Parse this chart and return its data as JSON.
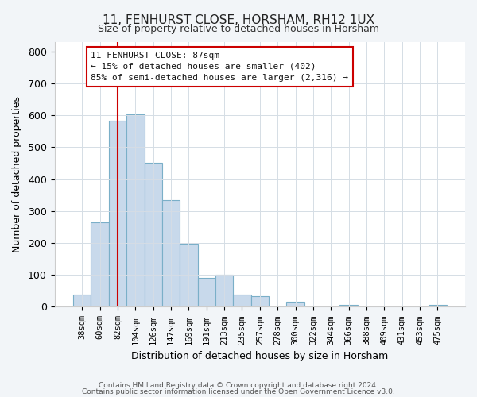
{
  "title": "11, FENHURST CLOSE, HORSHAM, RH12 1UX",
  "subtitle": "Size of property relative to detached houses in Horsham",
  "xlabel": "Distribution of detached houses by size in Horsham",
  "ylabel": "Number of detached properties",
  "bar_labels": [
    "38sqm",
    "60sqm",
    "82sqm",
    "104sqm",
    "126sqm",
    "147sqm",
    "169sqm",
    "191sqm",
    "213sqm",
    "235sqm",
    "257sqm",
    "278sqm",
    "300sqm",
    "322sqm",
    "344sqm",
    "366sqm",
    "388sqm",
    "409sqm",
    "431sqm",
    "453sqm",
    "475sqm"
  ],
  "bar_heights": [
    38,
    265,
    583,
    603,
    452,
    333,
    197,
    90,
    100,
    38,
    33,
    0,
    15,
    0,
    0,
    5,
    0,
    0,
    0,
    0,
    5
  ],
  "bar_color": "#c8d9eb",
  "bar_edge_color": "#7aafc8",
  "vline_x": 2,
  "vline_color": "#cc0000",
  "ylim": [
    0,
    830
  ],
  "yticks": [
    0,
    100,
    200,
    300,
    400,
    500,
    600,
    700,
    800
  ],
  "annotation_title": "11 FENHURST CLOSE: 87sqm",
  "annotation_line1": "← 15% of detached houses are smaller (402)",
  "annotation_line2": "85% of semi-detached houses are larger (2,316) →",
  "footer_line1": "Contains HM Land Registry data © Crown copyright and database right 2024.",
  "footer_line2": "Contains public sector information licensed under the Open Government Licence v3.0.",
  "bg_color": "#f2f5f8",
  "plot_bg_color": "#ffffff",
  "grid_color": "#d5dde5"
}
